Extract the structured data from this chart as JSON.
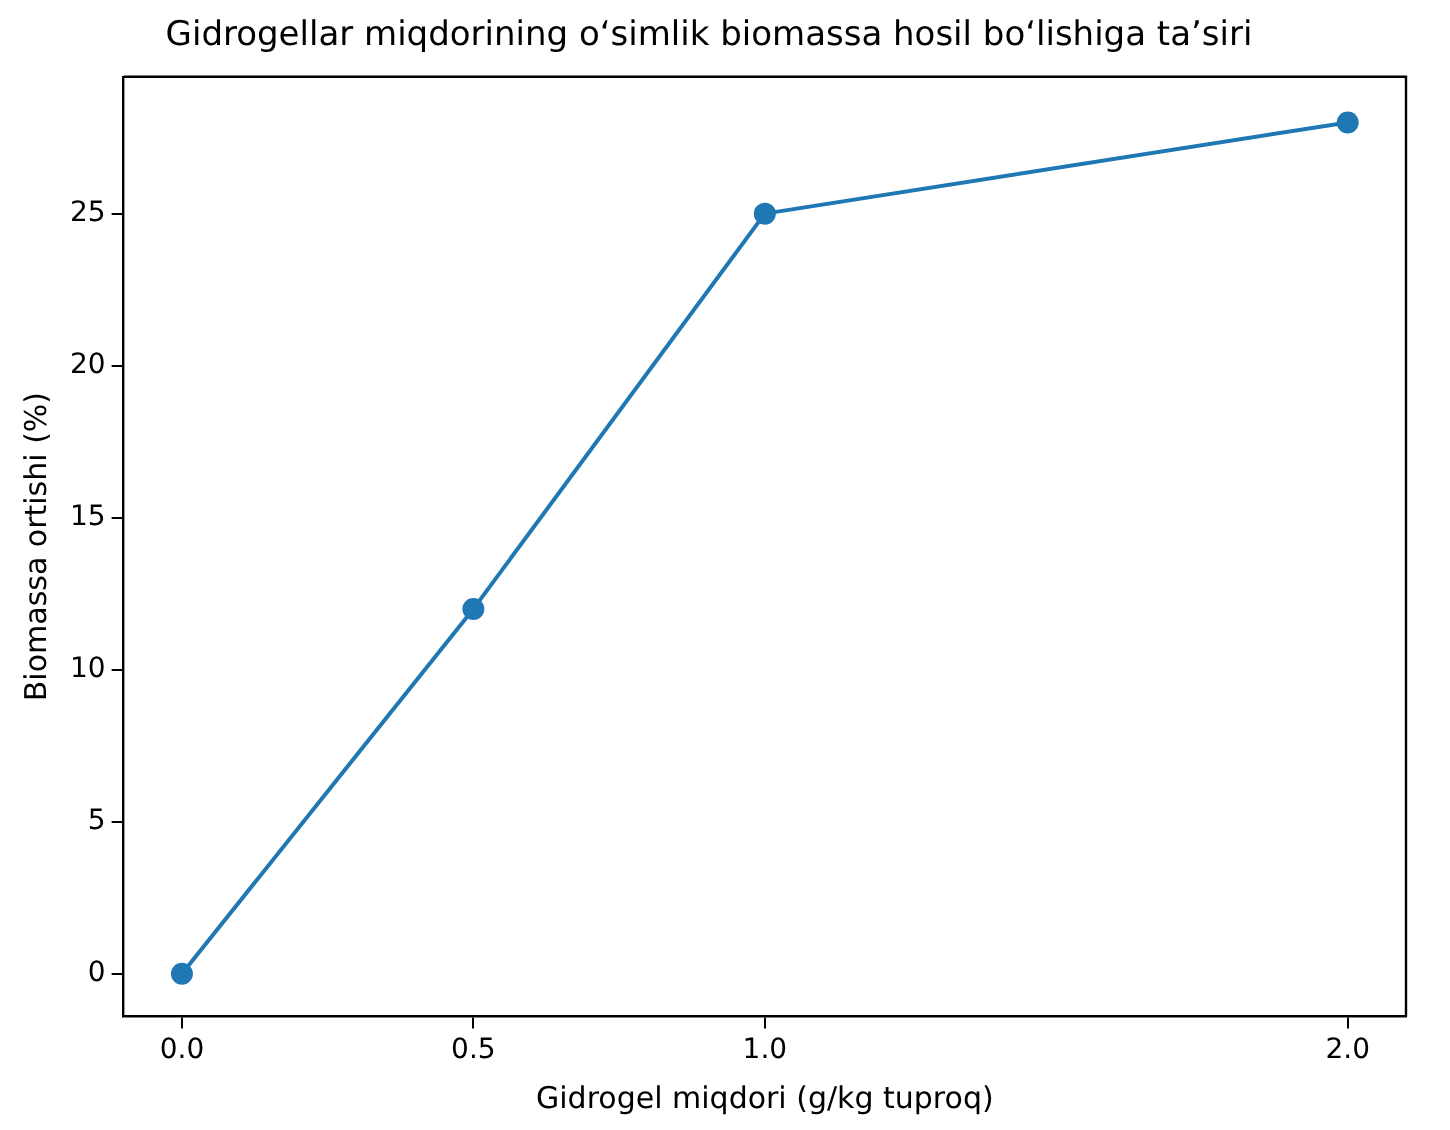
{
  "chart_data": {
    "type": "line",
    "title": "Gidrogellar miqdorining oʻsimlik biomassa hosil boʻlishiga taʼsiri",
    "xlabel": "Gidrogel miqdori (g/kg tuproq)",
    "ylabel": "Biomassa ortishi (%)",
    "x": [
      0,
      0.5,
      1.0,
      2.0
    ],
    "series": [
      {
        "color": "#1f77b4",
        "values": [
          0,
          12,
          25,
          28
        ]
      }
    ],
    "xlim": [
      -0.1,
      2.1
    ],
    "ylim": [
      -1.4,
      29.5
    ],
    "xticks": [
      {
        "value": 0,
        "label": "0.0"
      },
      {
        "value": 0.5,
        "label": "0.5"
      },
      {
        "value": 1.0,
        "label": "1.0"
      },
      {
        "value": 2.0,
        "label": "2.0"
      }
    ],
    "yticks": [
      0,
      5,
      10,
      15,
      20,
      25
    ],
    "grid": false,
    "legend": false,
    "marker": "circle",
    "line_style": "solid"
  }
}
